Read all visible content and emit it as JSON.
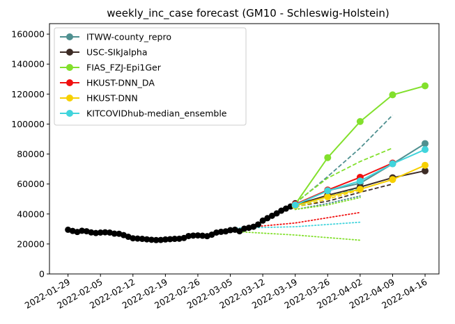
{
  "chart_data": {
    "type": "line",
    "title": "weekly_inc_case forecast (GM10 - Schleswig-Holstein)",
    "xlabel": "",
    "ylabel": "",
    "ylim": [
      0,
      167000
    ],
    "xlim": [
      "2022-01-25",
      "2022-04-19"
    ],
    "yticks": [
      0,
      20000,
      40000,
      60000,
      80000,
      100000,
      120000,
      140000,
      160000
    ],
    "xticks": [
      "2022-01-29",
      "2022-02-05",
      "2022-02-12",
      "2022-02-19",
      "2022-02-26",
      "2022-03-05",
      "2022-03-12",
      "2022-03-19",
      "2022-03-26",
      "2022-04-02",
      "2022-04-09",
      "2022-04-16"
    ],
    "grid": false,
    "legend_position": "top-left",
    "observed": {
      "color": "#000000",
      "x": [
        "2022-01-29",
        "2022-01-30",
        "2022-01-31",
        "2022-02-01",
        "2022-02-02",
        "2022-02-03",
        "2022-02-04",
        "2022-02-05",
        "2022-02-06",
        "2022-02-07",
        "2022-02-08",
        "2022-02-09",
        "2022-02-10",
        "2022-02-11",
        "2022-02-12",
        "2022-02-13",
        "2022-02-14",
        "2022-02-15",
        "2022-02-16",
        "2022-02-17",
        "2022-02-18",
        "2022-02-19",
        "2022-02-20",
        "2022-02-21",
        "2022-02-22",
        "2022-02-23",
        "2022-02-24",
        "2022-02-25",
        "2022-02-26",
        "2022-02-27",
        "2022-02-28",
        "2022-03-01",
        "2022-03-02",
        "2022-03-03",
        "2022-03-04",
        "2022-03-05",
        "2022-03-06",
        "2022-03-07",
        "2022-03-08",
        "2022-03-09",
        "2022-03-10",
        "2022-03-11",
        "2022-03-12",
        "2022-03-13",
        "2022-03-14",
        "2022-03-15",
        "2022-03-16",
        "2022-03-17",
        "2022-03-18",
        "2022-03-19"
      ],
      "y": [
        29500,
        28700,
        28000,
        28800,
        28500,
        27700,
        27300,
        27600,
        27800,
        27600,
        26900,
        26800,
        25900,
        24800,
        23800,
        23600,
        23400,
        23100,
        22800,
        22600,
        22700,
        23000,
        23200,
        23400,
        23500,
        24000,
        25300,
        25600,
        25700,
        25500,
        25200,
        26200,
        27600,
        28100,
        28400,
        29200,
        29500,
        28500,
        30200,
        30800,
        31500,
        33000,
        35600,
        37200,
        38800,
        40400,
        42200,
        43600,
        45000,
        47200
      ]
    },
    "series": [
      {
        "name": "ITWW-county_repro",
        "color": "#4f9090",
        "x": [
          "2022-03-19",
          "2022-03-26",
          "2022-04-02",
          "2022-04-09",
          "2022-04-16"
        ],
        "y": [
          46000,
          55600,
          60500,
          73500,
          87000
        ],
        "quantiles": [
          {
            "style": "dashed",
            "x": [
              "2022-03-19",
              "2022-03-26",
              "2022-04-02",
              "2022-04-09"
            ],
            "y": [
              47000,
              65000,
              84000,
              106000
            ]
          },
          {
            "style": "dotted",
            "x": [
              "2022-03-19",
              "2022-03-26",
              "2022-04-02"
            ],
            "y": [
              43000,
              47000,
              52000
            ]
          }
        ]
      },
      {
        "name": "USC-SIkJalpha",
        "color": "#3d2c26",
        "x": [
          "2022-03-19",
          "2022-03-26",
          "2022-04-02",
          "2022-04-09",
          "2022-04-16"
        ],
        "y": [
          46000,
          52500,
          58000,
          64200,
          68800
        ],
        "quantiles": [
          {
            "style": "dashed",
            "x": [
              "2022-03-19",
              "2022-03-26",
              "2022-04-02",
              "2022-04-09"
            ],
            "y": [
              45000,
              48500,
              54500,
              60000
            ]
          }
        ]
      },
      {
        "name": "FIAS_FZJ-Epi1Ger",
        "color": "#82e02c",
        "x": [
          "2022-03-19",
          "2022-03-26",
          "2022-04-02",
          "2022-04-09",
          "2022-04-16"
        ],
        "y": [
          46500,
          77600,
          101700,
          119500,
          125500
        ],
        "quantiles": [
          {
            "style": "dashed",
            "x": [
              "2022-03-19",
              "2022-03-26",
              "2022-04-02",
              "2022-04-09"
            ],
            "y": [
              47500,
              64000,
              75000,
              84000
            ]
          },
          {
            "style": "dotted",
            "x": [
              "2022-03-19",
              "2022-03-26",
              "2022-04-02"
            ],
            "y": [
              43000,
              46000,
              51000
            ]
          },
          {
            "style": "dotted",
            "x": [
              "2022-03-05",
              "2022-03-19",
              "2022-04-02"
            ],
            "y": [
              28500,
              26000,
              22500
            ]
          }
        ]
      },
      {
        "name": "HKUST-DNN_DA",
        "color": "#f01010",
        "x": [
          "2022-03-19",
          "2022-03-26",
          "2022-04-02",
          "2022-04-09"
        ],
        "y": [
          46500,
          56000,
          64500,
          74000
        ],
        "quantiles": [
          {
            "style": "dotted",
            "x": [
              "2022-03-05",
              "2022-03-19",
              "2022-04-02"
            ],
            "y": [
              30000,
              34000,
              41000
            ]
          }
        ]
      },
      {
        "name": "HKUST-DNN",
        "color": "#f7d000",
        "x": [
          "2022-03-19",
          "2022-03-26",
          "2022-04-02",
          "2022-04-09",
          "2022-04-16"
        ],
        "y": [
          45500,
          51500,
          56500,
          63000,
          72500
        ],
        "quantiles": [
          {
            "style": "dashed",
            "x": [
              "2022-03-19",
              "2022-03-26",
              "2022-04-02"
            ],
            "y": [
              44500,
              50000,
              56000
            ]
          }
        ]
      },
      {
        "name": "KITCOVIDhub-median_ensemble",
        "color": "#40d4dc",
        "x": [
          "2022-03-19",
          "2022-03-26",
          "2022-04-02",
          "2022-04-09",
          "2022-04-16"
        ],
        "y": [
          46000,
          55500,
          62000,
          73500,
          83000
        ],
        "quantiles": [
          {
            "style": "dashed",
            "x": [
              "2022-03-19",
              "2022-03-26",
              "2022-04-02"
            ],
            "y": [
              45000,
              51500,
              57500
            ]
          },
          {
            "style": "dotted",
            "x": [
              "2022-03-05",
              "2022-03-19",
              "2022-04-02"
            ],
            "y": [
              30500,
              31500,
              34500
            ]
          }
        ]
      }
    ]
  }
}
